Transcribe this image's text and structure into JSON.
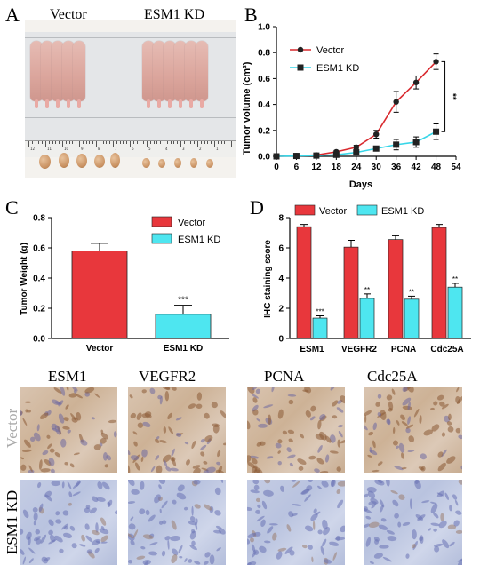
{
  "panels": {
    "a": "A",
    "b": "B",
    "c": "C",
    "d": "D"
  },
  "groups": {
    "vector": "Vector",
    "kd": "ESM1 KD"
  },
  "ruler_numbers": [
    "12",
    "11",
    "10",
    "9",
    "8",
    "7",
    "6",
    "5",
    "4",
    "3",
    "2",
    "1"
  ],
  "ihc": {
    "columns": [
      "ESM1",
      "VEGFR2",
      "PCNA",
      "Cdc25A"
    ],
    "rows": [
      "Vector",
      "ESM1 KD"
    ]
  },
  "colors": {
    "vector": "#e8373c",
    "kd": "#4ee6f0",
    "line_vector": "#d92a2f",
    "line_kd": "#37d6e8"
  },
  "chart_data": [
    {
      "id": "B",
      "type": "line",
      "xlabel": "Days",
      "ylabel": "Tumor volume (cm³)",
      "xlim": [
        0,
        54
      ],
      "ylim": [
        0,
        1.0
      ],
      "xticks": [
        0,
        6,
        12,
        18,
        24,
        30,
        36,
        42,
        48,
        54
      ],
      "yticks": [
        "0.0",
        "0.2",
        "0.4",
        "0.6",
        "0.8",
        "1.0"
      ],
      "x": [
        0,
        6,
        12,
        18,
        24,
        30,
        36,
        42,
        48
      ],
      "series": [
        {
          "name": "Vector",
          "values": [
            0.0,
            0.005,
            0.01,
            0.035,
            0.07,
            0.17,
            0.42,
            0.57,
            0.73
          ],
          "err": [
            0.0,
            0.003,
            0.005,
            0.008,
            0.015,
            0.03,
            0.08,
            0.05,
            0.06
          ]
        },
        {
          "name": "ESM1 KD",
          "values": [
            0.0,
            0.003,
            0.006,
            0.012,
            0.03,
            0.06,
            0.09,
            0.11,
            0.19
          ],
          "err": [
            0.0,
            0.002,
            0.004,
            0.006,
            0.008,
            0.01,
            0.04,
            0.04,
            0.06
          ]
        }
      ],
      "significance": "**"
    },
    {
      "id": "C",
      "type": "bar",
      "ylabel": "Tumor Weight (g)",
      "categories": [
        "Vector",
        "ESM1 KD"
      ],
      "values": [
        0.58,
        0.16
      ],
      "err": [
        0.05,
        0.06
      ],
      "ylim": [
        0,
        0.8
      ],
      "yticks": [
        "0.0",
        "0.2",
        "0.4",
        "0.6",
        "0.8"
      ],
      "legend": [
        "Vector",
        "ESM1 KD"
      ],
      "significance": [
        "",
        "***"
      ]
    },
    {
      "id": "D",
      "type": "bar",
      "ylabel": "IHC staining score",
      "categories": [
        "ESM1",
        "VEGFR2",
        "PCNA",
        "Cdc25A"
      ],
      "ylim": [
        0,
        8
      ],
      "yticks": [
        "0",
        "2",
        "4",
        "6",
        "8"
      ],
      "series": [
        {
          "name": "Vector",
          "values": [
            7.4,
            6.05,
            6.55,
            7.35
          ],
          "err": [
            0.15,
            0.45,
            0.25,
            0.2
          ]
        },
        {
          "name": "ESM1 KD",
          "values": [
            1.35,
            2.65,
            2.6,
            3.4
          ],
          "err": [
            0.15,
            0.3,
            0.2,
            0.25
          ]
        }
      ],
      "significance": [
        "***",
        "**",
        "**",
        "**"
      ]
    }
  ]
}
